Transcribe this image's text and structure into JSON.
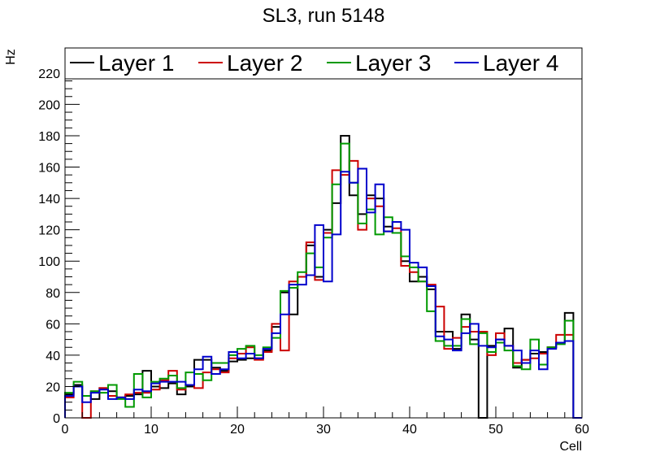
{
  "chart_data": {
    "type": "step",
    "title": "SL3, run 5148",
    "xlabel": "Cell",
    "ylabel": "Hz",
    "xlim": [
      0,
      60
    ],
    "ylim": [
      0,
      236
    ],
    "x_ticks": [
      0,
      10,
      20,
      30,
      40,
      50,
      60
    ],
    "y_ticks": [
      0,
      20,
      40,
      60,
      80,
      100,
      120,
      140,
      160,
      180,
      200,
      220
    ],
    "bin_edges_start": 0,
    "bin_width": 1,
    "legend_position": "top",
    "series": [
      {
        "name": "Layer 1",
        "color": "#000000",
        "values": [
          15,
          21,
          14,
          12,
          19,
          17,
          13,
          14,
          15,
          30,
          20,
          19,
          22,
          15,
          20,
          37,
          37,
          32,
          30,
          36,
          37,
          38,
          38,
          43,
          58,
          80,
          66,
          90,
          110,
          90,
          120,
          137,
          180,
          142,
          130,
          142,
          140,
          122,
          118,
          100,
          87,
          90,
          82,
          55,
          55,
          44,
          66,
          50,
          0,
          46,
          50,
          57,
          32,
          37,
          41,
          42,
          45,
          48,
          67,
          0
        ]
      },
      {
        "name": "Layer 2",
        "color": "#cc0000",
        "values": [
          13,
          20,
          0,
          17,
          19,
          14,
          13,
          15,
          16,
          16,
          18,
          24,
          30,
          18,
          21,
          19,
          29,
          31,
          29,
          38,
          41,
          45,
          37,
          42,
          60,
          43,
          87,
          90,
          112,
          88,
          118,
          158,
          155,
          164,
          120,
          140,
          135,
          119,
          121,
          97,
          93,
          87,
          85,
          71,
          44,
          51,
          58,
          55,
          55,
          40,
          54,
          46,
          35,
          37,
          38,
          41,
          45,
          53,
          53,
          0
        ]
      },
      {
        "name": "Layer 3",
        "color": "#009900",
        "values": [
          16,
          23,
          14,
          17,
          16,
          21,
          12,
          7,
          28,
          13,
          23,
          25,
          27,
          19,
          29,
          28,
          24,
          35,
          35,
          40,
          44,
          46,
          40,
          45,
          51,
          81,
          83,
          93,
          105,
          96,
          115,
          149,
          175,
          150,
          124,
          133,
          117,
          128,
          118,
          103,
          96,
          87,
          68,
          49,
          46,
          46,
          63,
          47,
          54,
          42,
          48,
          43,
          33,
          31,
          50,
          34,
          45,
          47,
          62,
          0
        ]
      },
      {
        "name": "Layer 4",
        "color": "#0000cc",
        "values": [
          14,
          20,
          10,
          16,
          18,
          12,
          13,
          12,
          18,
          17,
          22,
          23,
          23,
          23,
          21,
          31,
          39,
          28,
          31,
          42,
          38,
          41,
          38,
          44,
          54,
          66,
          85,
          85,
          91,
          123,
          87,
          117,
          157,
          150,
          159,
          131,
          149,
          119,
          125,
          120,
          99,
          96,
          84,
          52,
          50,
          43,
          54,
          60,
          46,
          45,
          50,
          46,
          43,
          35,
          43,
          31,
          44,
          48,
          49,
          0
        ]
      }
    ]
  }
}
